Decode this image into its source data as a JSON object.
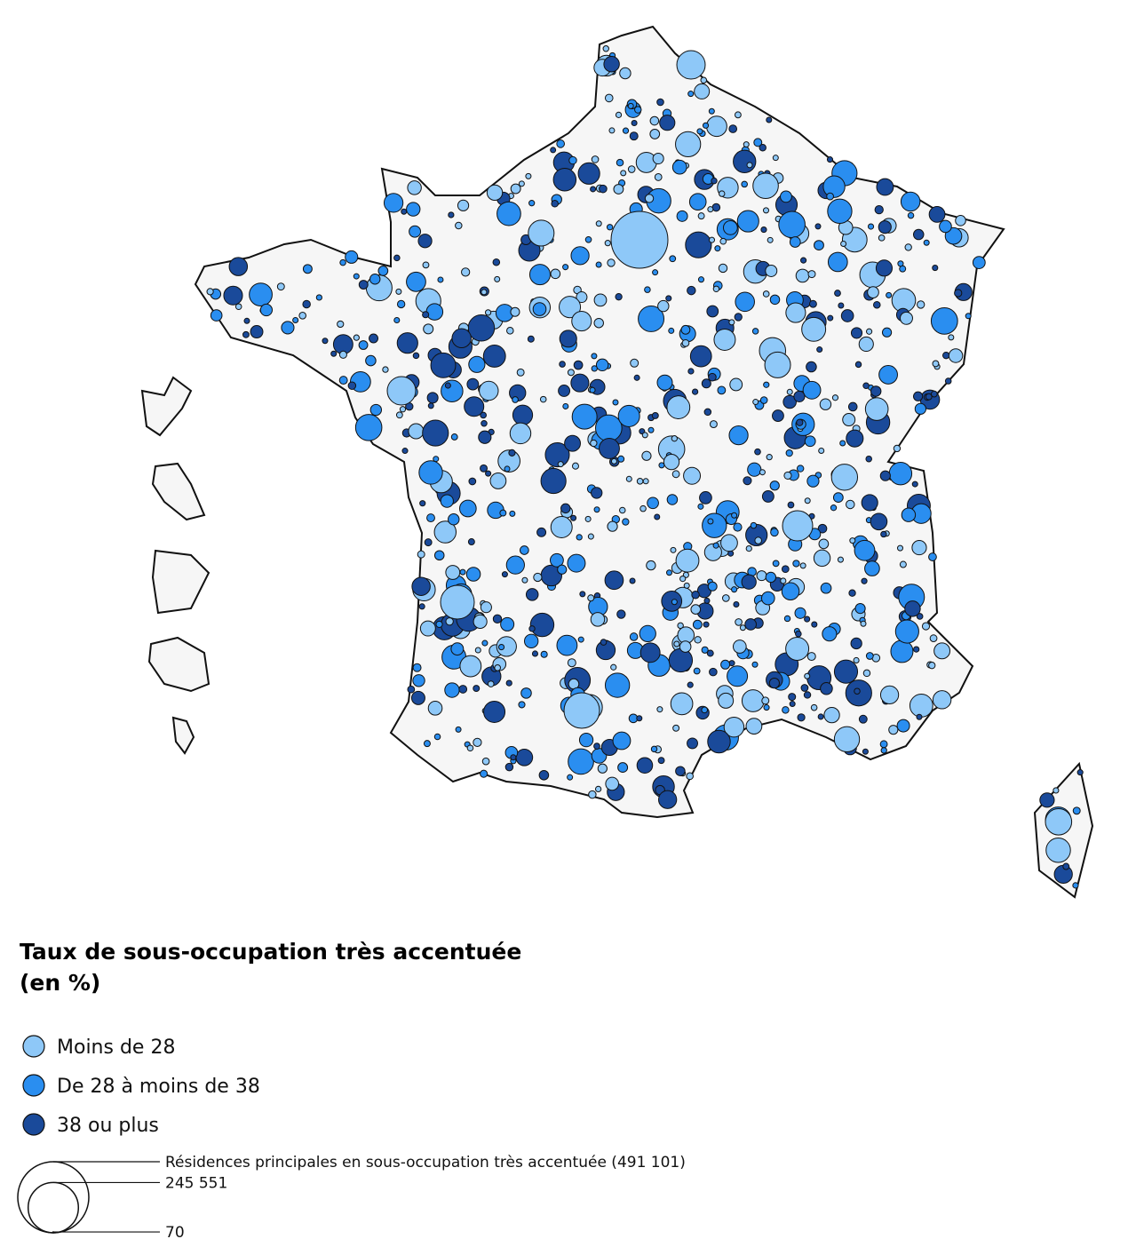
{
  "legend": {
    "title_lines": [
      "Taux de sous-occupation très accentuée",
      "(en %)"
    ],
    "classes": [
      {
        "label": "Moins de 28",
        "color": "#8ec8f8"
      },
      {
        "label": "De 28 à moins de 38",
        "color": "#2a8ef0"
      },
      {
        "label": "38 ou plus",
        "color": "#1a4a9a"
      }
    ],
    "sizes": [
      {
        "value": 491101,
        "label": "Résidences principales en sous-occupation très accentuée (491 101)"
      },
      {
        "value": 245551,
        "label": "245 551"
      },
      {
        "value": 70,
        "label": "70"
      }
    ]
  }
}
